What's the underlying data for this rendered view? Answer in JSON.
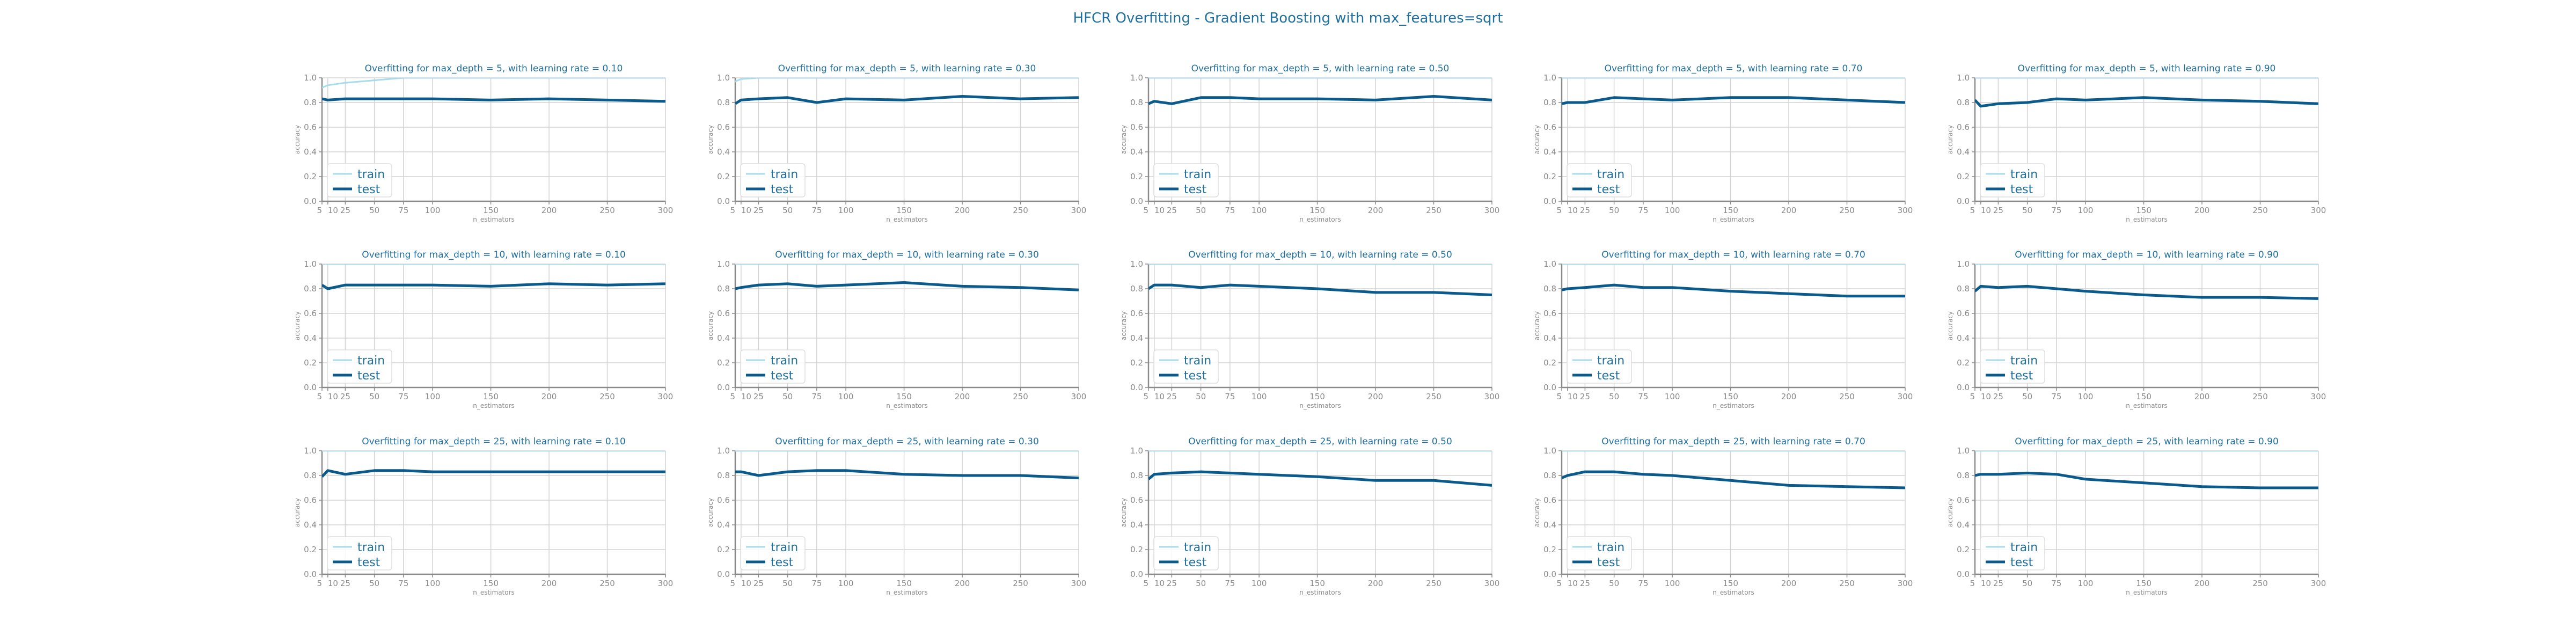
{
  "figure": {
    "title": "HFCR Overfitting - Gradient Boosting with max_features=sqrt"
  },
  "colors": {
    "train": "#a8dcec",
    "test": "#0b5a8c",
    "grid": "#d3d3d3",
    "spine": "#8a8a8a",
    "title": "#1f6f9f"
  },
  "chart_data": [
    {
      "type": "line",
      "title": "Overfitting for max_depth = 5, with learning rate = 0.10",
      "xlabel": "n_estimators",
      "ylabel": "accuracy",
      "ylim": [
        0,
        1
      ],
      "x": [
        5,
        10,
        25,
        50,
        75,
        100,
        150,
        200,
        250,
        300
      ],
      "xticks": [
        5,
        10,
        25,
        50,
        75,
        100,
        150,
        200,
        250,
        300
      ],
      "yticks": [
        0.0,
        0.2,
        0.4,
        0.6,
        0.8,
        1.0
      ],
      "legend": "lower-left",
      "series": [
        {
          "name": "train",
          "values": [
            0.92,
            0.94,
            0.96,
            0.98,
            1.0,
            1.0,
            1.0,
            1.0,
            1.0,
            1.0
          ]
        },
        {
          "name": "test",
          "values": [
            0.83,
            0.82,
            0.83,
            0.83,
            0.83,
            0.83,
            0.82,
            0.83,
            0.82,
            0.81
          ]
        }
      ]
    },
    {
      "type": "line",
      "title": "Overfitting for max_depth = 5, with learning rate = 0.30",
      "xlabel": "n_estimators",
      "ylabel": "accuracy",
      "ylim": [
        0,
        1
      ],
      "x": [
        5,
        10,
        25,
        50,
        75,
        100,
        150,
        200,
        250,
        300
      ],
      "xticks": [
        5,
        10,
        25,
        50,
        75,
        100,
        150,
        200,
        250,
        300
      ],
      "yticks": [
        0.0,
        0.2,
        0.4,
        0.6,
        0.8,
        1.0
      ],
      "legend": "lower-left",
      "series": [
        {
          "name": "train",
          "values": [
            0.97,
            0.99,
            1.0,
            1.0,
            1.0,
            1.0,
            1.0,
            1.0,
            1.0,
            1.0
          ]
        },
        {
          "name": "test",
          "values": [
            0.79,
            0.82,
            0.83,
            0.84,
            0.8,
            0.83,
            0.82,
            0.85,
            0.83,
            0.84
          ]
        }
      ]
    },
    {
      "type": "line",
      "title": "Overfitting for max_depth = 5, with learning rate = 0.50",
      "xlabel": "n_estimators",
      "ylabel": "accuracy",
      "ylim": [
        0,
        1
      ],
      "x": [
        5,
        10,
        25,
        50,
        75,
        100,
        150,
        200,
        250,
        300
      ],
      "xticks": [
        5,
        10,
        25,
        50,
        75,
        100,
        150,
        200,
        250,
        300
      ],
      "yticks": [
        0.0,
        0.2,
        0.4,
        0.6,
        0.8,
        1.0
      ],
      "legend": "lower-left",
      "series": [
        {
          "name": "train",
          "values": [
            1.0,
            1.0,
            1.0,
            1.0,
            1.0,
            1.0,
            1.0,
            1.0,
            1.0,
            1.0
          ]
        },
        {
          "name": "test",
          "values": [
            0.79,
            0.81,
            0.79,
            0.84,
            0.84,
            0.83,
            0.83,
            0.82,
            0.85,
            0.82
          ]
        }
      ]
    },
    {
      "type": "line",
      "title": "Overfitting for max_depth = 5, with learning rate = 0.70",
      "xlabel": "n_estimators",
      "ylabel": "accuracy",
      "ylim": [
        0,
        1
      ],
      "x": [
        5,
        10,
        25,
        50,
        75,
        100,
        150,
        200,
        250,
        300
      ],
      "xticks": [
        5,
        10,
        25,
        50,
        75,
        100,
        150,
        200,
        250,
        300
      ],
      "yticks": [
        0.0,
        0.2,
        0.4,
        0.6,
        0.8,
        1.0
      ],
      "legend": "lower-left",
      "series": [
        {
          "name": "train",
          "values": [
            1.0,
            1.0,
            1.0,
            1.0,
            1.0,
            1.0,
            1.0,
            1.0,
            1.0,
            1.0
          ]
        },
        {
          "name": "test",
          "values": [
            0.79,
            0.8,
            0.8,
            0.84,
            0.83,
            0.82,
            0.84,
            0.84,
            0.82,
            0.8
          ]
        }
      ]
    },
    {
      "type": "line",
      "title": "Overfitting for max_depth = 5, with learning rate = 0.90",
      "xlabel": "n_estimators",
      "ylabel": "accuracy",
      "ylim": [
        0,
        1
      ],
      "x": [
        5,
        10,
        25,
        50,
        75,
        100,
        150,
        200,
        250,
        300
      ],
      "xticks": [
        5,
        10,
        25,
        50,
        75,
        100,
        150,
        200,
        250,
        300
      ],
      "yticks": [
        0.0,
        0.2,
        0.4,
        0.6,
        0.8,
        1.0
      ],
      "legend": "lower-left",
      "series": [
        {
          "name": "train",
          "values": [
            1.0,
            1.0,
            1.0,
            1.0,
            1.0,
            1.0,
            1.0,
            1.0,
            1.0,
            1.0
          ]
        },
        {
          "name": "test",
          "values": [
            0.82,
            0.77,
            0.79,
            0.8,
            0.83,
            0.82,
            0.84,
            0.82,
            0.81,
            0.79
          ]
        }
      ]
    },
    {
      "type": "line",
      "title": "Overfitting for max_depth = 10, with learning rate = 0.10",
      "xlabel": "n_estimators",
      "ylabel": "accuracy",
      "ylim": [
        0,
        1
      ],
      "x": [
        5,
        10,
        25,
        50,
        75,
        100,
        150,
        200,
        250,
        300
      ],
      "xticks": [
        5,
        10,
        25,
        50,
        75,
        100,
        150,
        200,
        250,
        300
      ],
      "yticks": [
        0.0,
        0.2,
        0.4,
        0.6,
        0.8,
        1.0
      ],
      "legend": "lower-left",
      "series": [
        {
          "name": "train",
          "values": [
            1.0,
            1.0,
            1.0,
            1.0,
            1.0,
            1.0,
            1.0,
            1.0,
            1.0,
            1.0
          ]
        },
        {
          "name": "test",
          "values": [
            0.83,
            0.8,
            0.83,
            0.83,
            0.83,
            0.83,
            0.82,
            0.84,
            0.83,
            0.84
          ]
        }
      ]
    },
    {
      "type": "line",
      "title": "Overfitting for max_depth = 10, with learning rate = 0.30",
      "xlabel": "n_estimators",
      "ylabel": "accuracy",
      "ylim": [
        0,
        1
      ],
      "x": [
        5,
        10,
        25,
        50,
        75,
        100,
        150,
        200,
        250,
        300
      ],
      "xticks": [
        5,
        10,
        25,
        50,
        75,
        100,
        150,
        200,
        250,
        300
      ],
      "yticks": [
        0.0,
        0.2,
        0.4,
        0.6,
        0.8,
        1.0
      ],
      "legend": "lower-left",
      "series": [
        {
          "name": "train",
          "values": [
            1.0,
            1.0,
            1.0,
            1.0,
            1.0,
            1.0,
            1.0,
            1.0,
            1.0,
            1.0
          ]
        },
        {
          "name": "test",
          "values": [
            0.8,
            0.81,
            0.83,
            0.84,
            0.82,
            0.83,
            0.85,
            0.82,
            0.81,
            0.79
          ]
        }
      ]
    },
    {
      "type": "line",
      "title": "Overfitting for max_depth = 10, with learning rate = 0.50",
      "xlabel": "n_estimators",
      "ylabel": "accuracy",
      "ylim": [
        0,
        1
      ],
      "x": [
        5,
        10,
        25,
        50,
        75,
        100,
        150,
        200,
        250,
        300
      ],
      "xticks": [
        5,
        10,
        25,
        50,
        75,
        100,
        150,
        200,
        250,
        300
      ],
      "yticks": [
        0.0,
        0.2,
        0.4,
        0.6,
        0.8,
        1.0
      ],
      "legend": "lower-left",
      "series": [
        {
          "name": "train",
          "values": [
            1.0,
            1.0,
            1.0,
            1.0,
            1.0,
            1.0,
            1.0,
            1.0,
            1.0,
            1.0
          ]
        },
        {
          "name": "test",
          "values": [
            0.8,
            0.83,
            0.83,
            0.81,
            0.83,
            0.82,
            0.8,
            0.77,
            0.77,
            0.75
          ]
        }
      ]
    },
    {
      "type": "line",
      "title": "Overfitting for max_depth = 10, with learning rate = 0.70",
      "xlabel": "n_estimators",
      "ylabel": "accuracy",
      "ylim": [
        0,
        1
      ],
      "x": [
        5,
        10,
        25,
        50,
        75,
        100,
        150,
        200,
        250,
        300
      ],
      "xticks": [
        5,
        10,
        25,
        50,
        75,
        100,
        150,
        200,
        250,
        300
      ],
      "yticks": [
        0.0,
        0.2,
        0.4,
        0.6,
        0.8,
        1.0
      ],
      "legend": "lower-left",
      "series": [
        {
          "name": "train",
          "values": [
            1.0,
            1.0,
            1.0,
            1.0,
            1.0,
            1.0,
            1.0,
            1.0,
            1.0,
            1.0
          ]
        },
        {
          "name": "test",
          "values": [
            0.79,
            0.8,
            0.81,
            0.83,
            0.81,
            0.81,
            0.78,
            0.76,
            0.74,
            0.74
          ]
        }
      ]
    },
    {
      "type": "line",
      "title": "Overfitting for max_depth = 10, with learning rate = 0.90",
      "xlabel": "n_estimators",
      "ylabel": "accuracy",
      "ylim": [
        0,
        1
      ],
      "x": [
        5,
        10,
        25,
        50,
        75,
        100,
        150,
        200,
        250,
        300
      ],
      "xticks": [
        5,
        10,
        25,
        50,
        75,
        100,
        150,
        200,
        250,
        300
      ],
      "yticks": [
        0.0,
        0.2,
        0.4,
        0.6,
        0.8,
        1.0
      ],
      "legend": "lower-left",
      "series": [
        {
          "name": "train",
          "values": [
            1.0,
            1.0,
            1.0,
            1.0,
            1.0,
            1.0,
            1.0,
            1.0,
            1.0,
            1.0
          ]
        },
        {
          "name": "test",
          "values": [
            0.78,
            0.82,
            0.81,
            0.82,
            0.8,
            0.78,
            0.75,
            0.73,
            0.73,
            0.72
          ]
        }
      ]
    },
    {
      "type": "line",
      "title": "Overfitting for max_depth = 25, with learning rate = 0.10",
      "xlabel": "n_estimators",
      "ylabel": "accuracy",
      "ylim": [
        0,
        1
      ],
      "x": [
        5,
        10,
        25,
        50,
        75,
        100,
        150,
        200,
        250,
        300
      ],
      "xticks": [
        5,
        10,
        25,
        50,
        75,
        100,
        150,
        200,
        250,
        300
      ],
      "yticks": [
        0.0,
        0.2,
        0.4,
        0.6,
        0.8,
        1.0
      ],
      "legend": "lower-left",
      "series": [
        {
          "name": "train",
          "values": [
            1.0,
            1.0,
            1.0,
            1.0,
            1.0,
            1.0,
            1.0,
            1.0,
            1.0,
            1.0
          ]
        },
        {
          "name": "test",
          "values": [
            0.79,
            0.84,
            0.81,
            0.84,
            0.84,
            0.83,
            0.83,
            0.83,
            0.83,
            0.83
          ]
        }
      ]
    },
    {
      "type": "line",
      "title": "Overfitting for max_depth = 25, with learning rate = 0.30",
      "xlabel": "n_estimators",
      "ylabel": "accuracy",
      "ylim": [
        0,
        1
      ],
      "x": [
        5,
        10,
        25,
        50,
        75,
        100,
        150,
        200,
        250,
        300
      ],
      "xticks": [
        5,
        10,
        25,
        50,
        75,
        100,
        150,
        200,
        250,
        300
      ],
      "yticks": [
        0.0,
        0.2,
        0.4,
        0.6,
        0.8,
        1.0
      ],
      "legend": "lower-left",
      "series": [
        {
          "name": "train",
          "values": [
            1.0,
            1.0,
            1.0,
            1.0,
            1.0,
            1.0,
            1.0,
            1.0,
            1.0,
            1.0
          ]
        },
        {
          "name": "test",
          "values": [
            0.83,
            0.83,
            0.8,
            0.83,
            0.84,
            0.84,
            0.81,
            0.8,
            0.8,
            0.78
          ]
        }
      ]
    },
    {
      "type": "line",
      "title": "Overfitting for max_depth = 25, with learning rate = 0.50",
      "xlabel": "n_estimators",
      "ylabel": "accuracy",
      "ylim": [
        0,
        1
      ],
      "x": [
        5,
        10,
        25,
        50,
        75,
        100,
        150,
        200,
        250,
        300
      ],
      "xticks": [
        5,
        10,
        25,
        50,
        75,
        100,
        150,
        200,
        250,
        300
      ],
      "yticks": [
        0.0,
        0.2,
        0.4,
        0.6,
        0.8,
        1.0
      ],
      "legend": "lower-left",
      "series": [
        {
          "name": "train",
          "values": [
            1.0,
            1.0,
            1.0,
            1.0,
            1.0,
            1.0,
            1.0,
            1.0,
            1.0,
            1.0
          ]
        },
        {
          "name": "test",
          "values": [
            0.77,
            0.81,
            0.82,
            0.83,
            0.82,
            0.81,
            0.79,
            0.76,
            0.76,
            0.72
          ]
        }
      ]
    },
    {
      "type": "line",
      "title": "Overfitting for max_depth = 25, with learning rate = 0.70",
      "xlabel": "n_estimators",
      "ylabel": "accuracy",
      "ylim": [
        0,
        1
      ],
      "x": [
        5,
        10,
        25,
        50,
        75,
        100,
        150,
        200,
        250,
        300
      ],
      "xticks": [
        5,
        10,
        25,
        50,
        75,
        100,
        150,
        200,
        250,
        300
      ],
      "yticks": [
        0.0,
        0.2,
        0.4,
        0.6,
        0.8,
        1.0
      ],
      "legend": "lower-left",
      "series": [
        {
          "name": "train",
          "values": [
            1.0,
            1.0,
            1.0,
            1.0,
            1.0,
            1.0,
            1.0,
            1.0,
            1.0,
            1.0
          ]
        },
        {
          "name": "test",
          "values": [
            0.78,
            0.8,
            0.83,
            0.83,
            0.81,
            0.8,
            0.76,
            0.72,
            0.71,
            0.7
          ]
        }
      ]
    },
    {
      "type": "line",
      "title": "Overfitting for max_depth = 25, with learning rate = 0.90",
      "xlabel": "n_estimators",
      "ylabel": "accuracy",
      "ylim": [
        0,
        1
      ],
      "x": [
        5,
        10,
        25,
        50,
        75,
        100,
        150,
        200,
        250,
        300
      ],
      "xticks": [
        5,
        10,
        25,
        50,
        75,
        100,
        150,
        200,
        250,
        300
      ],
      "yticks": [
        0.0,
        0.2,
        0.4,
        0.6,
        0.8,
        1.0
      ],
      "legend": "lower-left",
      "series": [
        {
          "name": "train",
          "values": [
            1.0,
            1.0,
            1.0,
            1.0,
            1.0,
            1.0,
            1.0,
            1.0,
            1.0,
            1.0
          ]
        },
        {
          "name": "test",
          "values": [
            0.8,
            0.81,
            0.81,
            0.82,
            0.81,
            0.77,
            0.74,
            0.71,
            0.7,
            0.7
          ]
        }
      ]
    }
  ]
}
